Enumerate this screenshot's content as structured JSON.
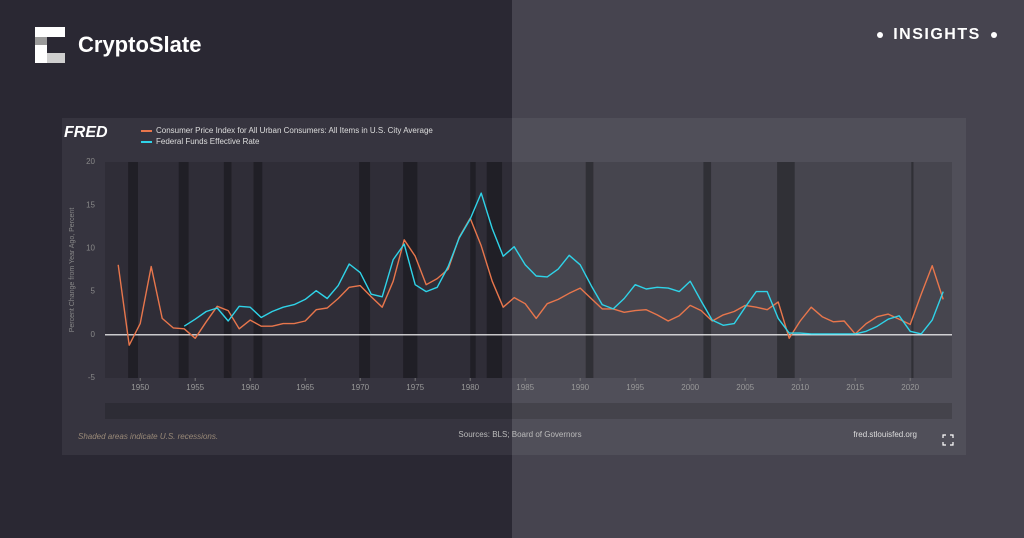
{
  "brand": "CryptoSlate",
  "tag": "INSIGHTS",
  "chart_data": {
    "type": "line",
    "source_logo": "FRED",
    "ylabel": "Percent Change from Year Ago, Percent",
    "footnote": "Shaded areas indicate U.S. recessions.",
    "sources": "Sources: BLS; Board of Governors",
    "site": "fred.stlouisfed.org",
    "xlim": [
      1946.8,
      2023.8
    ],
    "xticks": [
      1950,
      1955,
      1960,
      1965,
      1970,
      1975,
      1980,
      1985,
      1990,
      1995,
      2000,
      2005,
      2010,
      2015,
      2020
    ],
    "ylim": [
      -5,
      20
    ],
    "yticks": [
      -5,
      0,
      5,
      10,
      15,
      20
    ],
    "grid": false,
    "recessions": [
      [
        1948.9,
        1949.8
      ],
      [
        1953.5,
        1954.4
      ],
      [
        1957.6,
        1958.3
      ],
      [
        1960.3,
        1961.1
      ],
      [
        1969.9,
        1970.9
      ],
      [
        1973.9,
        1975.2
      ],
      [
        1980.0,
        1980.5
      ],
      [
        1981.5,
        1982.9
      ],
      [
        1990.5,
        1991.2
      ],
      [
        2001.2,
        2001.9
      ],
      [
        2007.9,
        2009.5
      ],
      [
        2020.1,
        2020.3
      ]
    ],
    "x": [
      1948,
      1949,
      1950,
      1951,
      1952,
      1953,
      1954,
      1955,
      1956,
      1957,
      1958,
      1959,
      1960,
      1961,
      1962,
      1963,
      1964,
      1965,
      1966,
      1967,
      1968,
      1969,
      1970,
      1971,
      1972,
      1973,
      1974,
      1975,
      1976,
      1977,
      1978,
      1979,
      1980,
      1981,
      1982,
      1983,
      1984,
      1985,
      1986,
      1987,
      1988,
      1989,
      1990,
      1991,
      1992,
      1993,
      1994,
      1995,
      1996,
      1997,
      1998,
      1999,
      2000,
      2001,
      2002,
      2003,
      2004,
      2005,
      2006,
      2007,
      2008,
      2009,
      2010,
      2011,
      2012,
      2013,
      2014,
      2015,
      2016,
      2017,
      2018,
      2019,
      2020,
      2021,
      2022,
      2023
    ],
    "series": [
      {
        "name": "Consumer Price Index for All Urban Consumers: All Items in U.S. City Average",
        "color": "#e8764c",
        "values": [
          8.1,
          -1.2,
          1.3,
          7.9,
          1.9,
          0.8,
          0.7,
          -0.4,
          1.5,
          3.3,
          2.8,
          0.7,
          1.7,
          1.0,
          1.0,
          1.3,
          1.3,
          1.6,
          2.9,
          3.1,
          4.2,
          5.5,
          5.7,
          4.4,
          3.2,
          6.2,
          11.0,
          9.1,
          5.8,
          6.5,
          7.6,
          11.3,
          13.5,
          10.3,
          6.2,
          3.2,
          4.3,
          3.6,
          1.9,
          3.6,
          4.1,
          4.8,
          5.4,
          4.2,
          3.0,
          3.0,
          2.6,
          2.8,
          2.9,
          2.3,
          1.6,
          2.2,
          3.4,
          2.8,
          1.6,
          2.3,
          2.7,
          3.4,
          3.2,
          2.9,
          3.8,
          -0.4,
          1.6,
          3.2,
          2.1,
          1.5,
          1.6,
          0.1,
          1.3,
          2.1,
          2.4,
          1.8,
          1.2,
          4.7,
          8.0,
          4.1
        ]
      },
      {
        "name": "Federal Funds Effective Rate",
        "color": "#2fd3e8",
        "values": [
          null,
          null,
          null,
          null,
          null,
          null,
          1.0,
          1.8,
          2.7,
          3.1,
          1.6,
          3.3,
          3.2,
          2.0,
          2.7,
          3.2,
          3.5,
          4.1,
          5.1,
          4.2,
          5.7,
          8.2,
          7.2,
          4.7,
          4.4,
          8.7,
          10.5,
          5.8,
          5.0,
          5.5,
          7.9,
          11.2,
          13.4,
          16.4,
          12.3,
          9.1,
          10.2,
          8.1,
          6.8,
          6.7,
          7.6,
          9.2,
          8.1,
          5.7,
          3.5,
          3.0,
          4.2,
          5.8,
          5.3,
          5.5,
          5.4,
          5.0,
          6.2,
          3.9,
          1.7,
          1.1,
          1.3,
          3.2,
          5.0,
          5.0,
          1.9,
          0.2,
          0.2,
          0.1,
          0.1,
          0.1,
          0.1,
          0.1,
          0.4,
          1.0,
          1.8,
          2.2,
          0.4,
          0.1,
          1.7,
          5.0
        ]
      }
    ]
  }
}
